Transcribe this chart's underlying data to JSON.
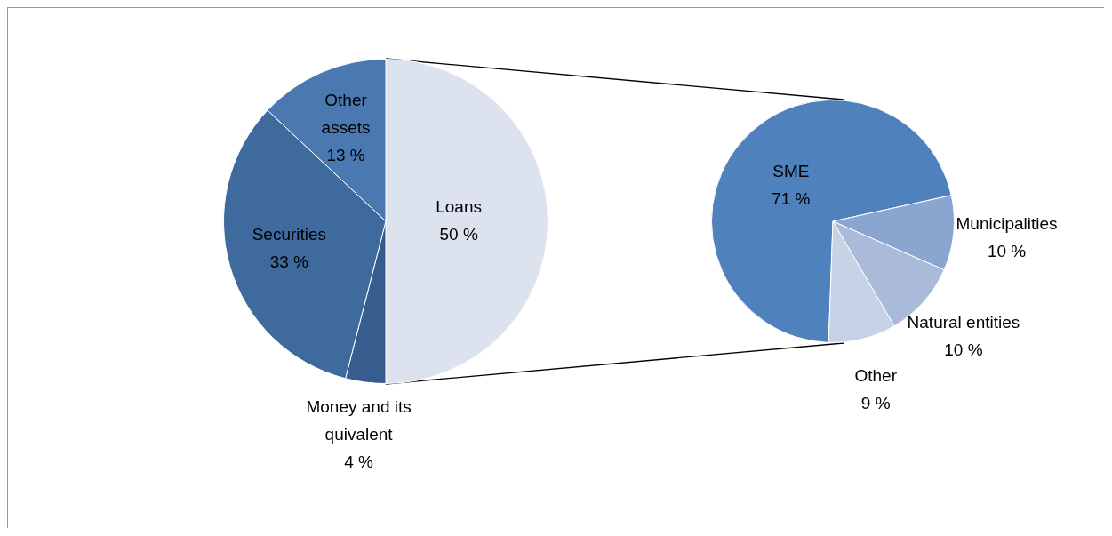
{
  "chart_data": [
    {
      "type": "pie",
      "categories": [
        "Loans",
        "Money and its quivalent",
        "Securities",
        "Other assets"
      ],
      "values": [
        50,
        4,
        33,
        13
      ],
      "value_labels": [
        "50 %",
        "4 %",
        "33 %",
        "13 %"
      ],
      "colors": [
        "#dce3ef",
        "#365d8e",
        "#3e6a9e",
        "#4a78b0"
      ],
      "data_labels": true
    },
    {
      "type": "pie",
      "categories": [
        "SME",
        "Municipalities",
        "Natural entities",
        "Other"
      ],
      "values": [
        71,
        10,
        10,
        9
      ],
      "value_labels": [
        "71 %",
        "10 %",
        "10 %",
        "9 %"
      ],
      "colors": [
        "#4f81bd",
        "#8aa5d0",
        "#a9bbd9",
        "#c6d2e6"
      ],
      "data_labels": true
    }
  ]
}
